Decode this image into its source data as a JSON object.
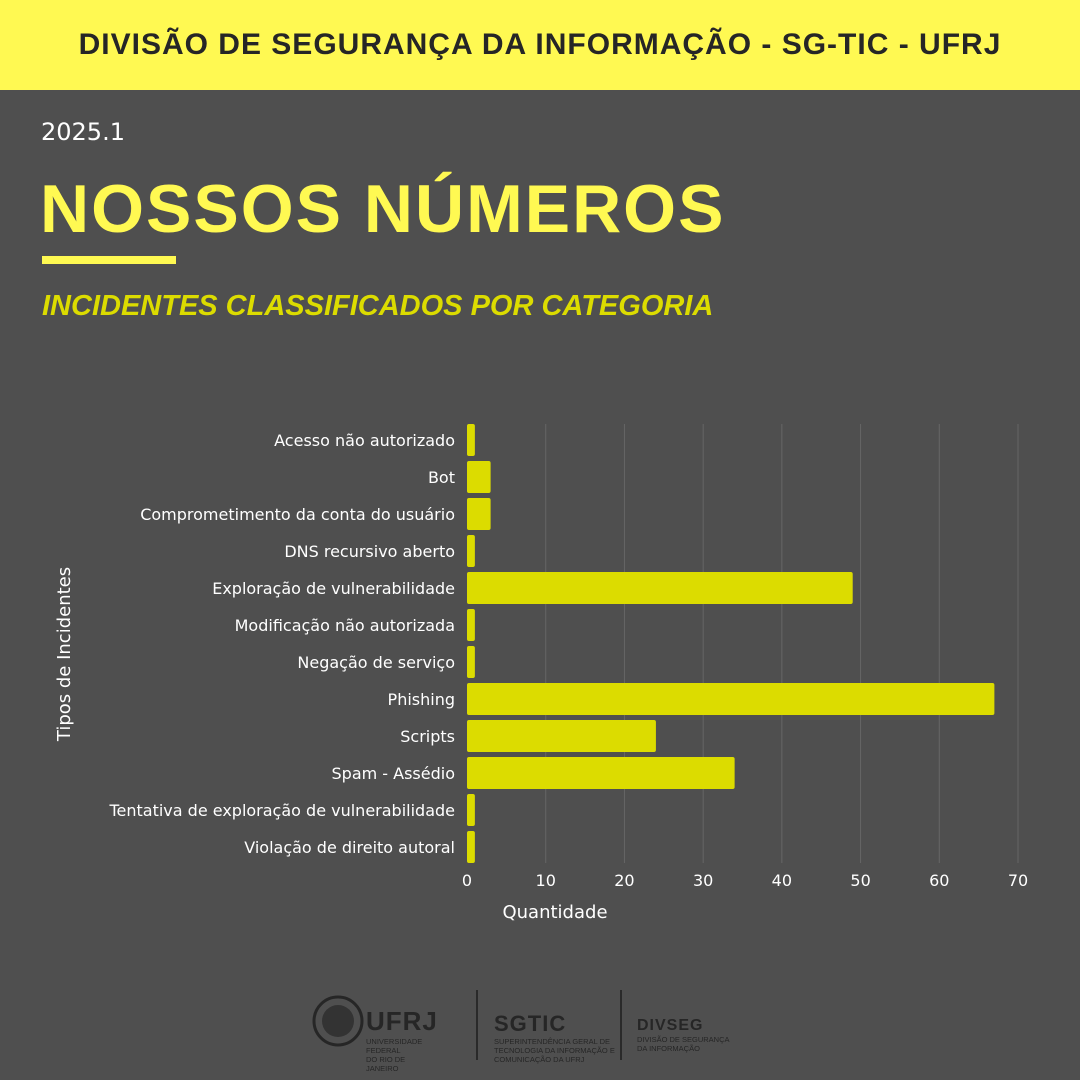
{
  "header": {
    "banner": "DIVISÃO DE SEGURANÇA DA INFORMAÇÃO - SG-TIC - UFRJ",
    "period": "2025.1",
    "title": "NOSSOS NÚMEROS",
    "subtitle": "INCIDENTES CLASSIFICADOS POR CATEGORIA"
  },
  "colors": {
    "background": "#4f4f4f",
    "accent": "#fff952",
    "bar": "#dcdc00"
  },
  "chart_data": {
    "type": "bar",
    "orientation": "horizontal",
    "categories": [
      "Acesso não autorizado",
      "Bot",
      "Comprometimento da conta do usuário",
      "DNS recursivo aberto",
      "Exploração de vulnerabilidade",
      "Modificação não autorizada",
      "Negação de serviço",
      "Phishing",
      "Scripts",
      "Spam - Assédio",
      "Tentativa de exploração de vulnerabilidade",
      "Violação de direito autoral"
    ],
    "values": [
      1,
      3,
      3,
      1,
      49,
      1,
      1,
      67,
      24,
      34,
      1,
      1
    ],
    "xlabel": "Quantidade",
    "ylabel": "Tipos de Incidentes",
    "xlim": [
      0,
      70
    ],
    "xticks": [
      "0",
      "10",
      "20",
      "30",
      "40",
      "50",
      "60",
      "70"
    ],
    "grid": "vertical"
  },
  "footer": {
    "ufrj": {
      "name": "UFRJ",
      "line1": "Universidade Federal",
      "line2": "do Rio de Janeiro"
    },
    "sgtic": {
      "name": "SGTIC",
      "line1": "Superintendência Geral de",
      "line2": "Tecnologia da Informação e",
      "line3": "Comunicação da UFRJ"
    },
    "divseg": {
      "name": "DIVSEG",
      "line1": "Divisão de Segurança",
      "line2": "da Informação"
    }
  }
}
